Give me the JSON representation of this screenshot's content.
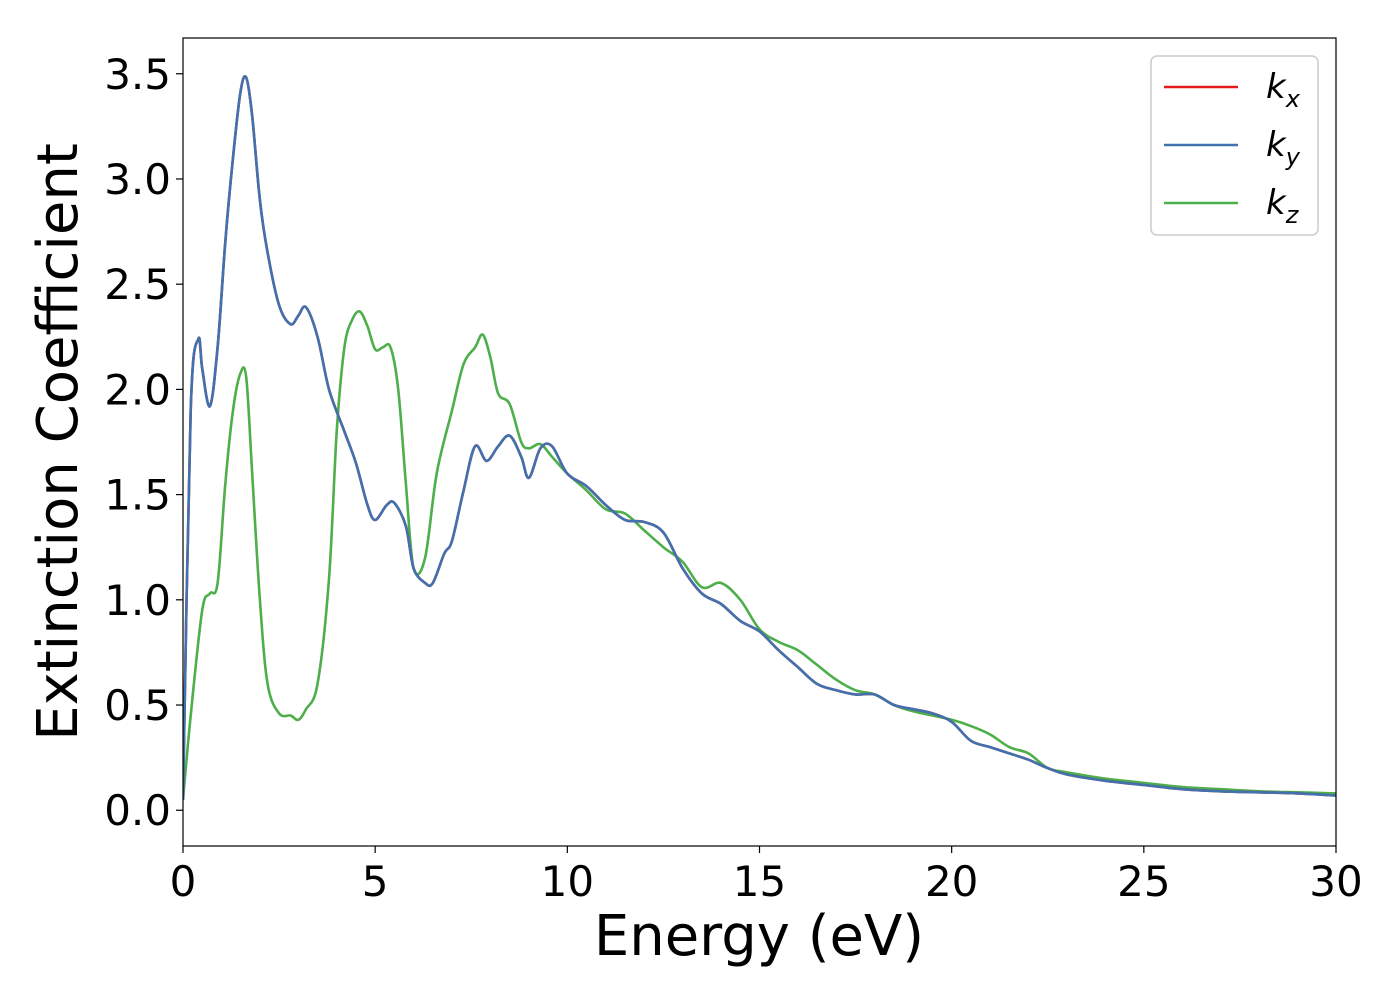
{
  "chart_data": {
    "type": "line",
    "xlabel": "Energy (eV)",
    "ylabel": "Extinction Coefficient",
    "xlim": [
      0,
      30
    ],
    "ylim": [
      -0.17,
      3.67
    ],
    "xticks": [
      0,
      5,
      10,
      15,
      20,
      25,
      30
    ],
    "xtick_labels": [
      "0",
      "5",
      "10",
      "15",
      "20",
      "25",
      "30"
    ],
    "yticks": [
      0.0,
      0.5,
      1.0,
      1.5,
      2.0,
      2.5,
      3.0,
      3.5
    ],
    "ytick_labels": [
      "0.0",
      "0.5",
      "1.0",
      "1.5",
      "2.0",
      "2.5",
      "3.0",
      "3.5"
    ],
    "grid": false,
    "legend_position": "top-right",
    "series": [
      {
        "name": "k",
        "sub": "x",
        "color": "#e41a1c",
        "x": [
          0,
          0.2,
          0.4,
          0.5,
          0.7,
          0.9,
          1.1,
          1.3,
          1.5,
          1.65,
          1.8,
          2.0,
          2.2,
          2.5,
          2.8,
          3.0,
          3.2,
          3.5,
          3.8,
          4.2,
          4.5,
          4.8,
          5.0,
          5.3,
          5.5,
          5.8,
          6.0,
          6.3,
          6.5,
          6.8,
          7.0,
          7.3,
          7.6,
          7.9,
          8.2,
          8.5,
          8.8,
          9.0,
          9.3,
          9.6,
          10.0,
          10.5,
          11.0,
          11.5,
          12.0,
          12.5,
          13.0,
          13.5,
          14.0,
          14.5,
          15.0,
          15.5,
          16.0,
          16.5,
          17.0,
          17.5,
          18.0,
          18.5,
          19.0,
          19.5,
          20.0,
          20.5,
          21.0,
          21.5,
          22.0,
          22.5,
          23.0,
          24.0,
          25.0,
          26.0,
          27.0,
          28.0,
          29.0,
          30.0
        ],
        "y": [
          0.05,
          1.9,
          2.24,
          2.1,
          1.92,
          2.2,
          2.7,
          3.1,
          3.42,
          3.48,
          3.3,
          2.9,
          2.65,
          2.4,
          2.31,
          2.35,
          2.39,
          2.25,
          2.0,
          1.8,
          1.65,
          1.45,
          1.38,
          1.45,
          1.46,
          1.35,
          1.15,
          1.08,
          1.08,
          1.22,
          1.28,
          1.52,
          1.73,
          1.66,
          1.73,
          1.78,
          1.68,
          1.58,
          1.72,
          1.73,
          1.6,
          1.54,
          1.45,
          1.38,
          1.37,
          1.32,
          1.15,
          1.03,
          0.98,
          0.9,
          0.85,
          0.76,
          0.68,
          0.6,
          0.57,
          0.55,
          0.55,
          0.5,
          0.48,
          0.46,
          0.42,
          0.33,
          0.3,
          0.27,
          0.24,
          0.2,
          0.17,
          0.14,
          0.12,
          0.1,
          0.09,
          0.085,
          0.08,
          0.07
        ]
      },
      {
        "name": "k",
        "sub": "y",
        "color": "#3f72af",
        "x": [
          0,
          0.2,
          0.4,
          0.5,
          0.7,
          0.9,
          1.1,
          1.3,
          1.5,
          1.65,
          1.8,
          2.0,
          2.2,
          2.5,
          2.8,
          3.0,
          3.2,
          3.5,
          3.8,
          4.2,
          4.5,
          4.8,
          5.0,
          5.3,
          5.5,
          5.8,
          6.0,
          6.3,
          6.5,
          6.8,
          7.0,
          7.3,
          7.6,
          7.9,
          8.2,
          8.5,
          8.8,
          9.0,
          9.3,
          9.6,
          10.0,
          10.5,
          11.0,
          11.5,
          12.0,
          12.5,
          13.0,
          13.5,
          14.0,
          14.5,
          15.0,
          15.5,
          16.0,
          16.5,
          17.0,
          17.5,
          18.0,
          18.5,
          19.0,
          19.5,
          20.0,
          20.5,
          21.0,
          21.5,
          22.0,
          22.5,
          23.0,
          24.0,
          25.0,
          26.0,
          27.0,
          28.0,
          29.0,
          30.0
        ],
        "y": [
          0.05,
          1.9,
          2.24,
          2.1,
          1.92,
          2.2,
          2.7,
          3.1,
          3.42,
          3.48,
          3.3,
          2.9,
          2.65,
          2.4,
          2.31,
          2.35,
          2.39,
          2.25,
          2.0,
          1.8,
          1.65,
          1.45,
          1.38,
          1.45,
          1.46,
          1.35,
          1.15,
          1.08,
          1.08,
          1.22,
          1.28,
          1.52,
          1.73,
          1.66,
          1.73,
          1.78,
          1.68,
          1.58,
          1.72,
          1.73,
          1.6,
          1.54,
          1.45,
          1.38,
          1.37,
          1.32,
          1.15,
          1.03,
          0.98,
          0.9,
          0.85,
          0.76,
          0.68,
          0.6,
          0.57,
          0.55,
          0.55,
          0.5,
          0.48,
          0.46,
          0.42,
          0.33,
          0.3,
          0.27,
          0.24,
          0.2,
          0.17,
          0.14,
          0.12,
          0.1,
          0.09,
          0.085,
          0.08,
          0.07
        ]
      },
      {
        "name": "k",
        "sub": "z",
        "color": "#4daf4a",
        "x": [
          0,
          0.2,
          0.5,
          0.7,
          0.9,
          1.1,
          1.3,
          1.5,
          1.65,
          1.8,
          2.0,
          2.2,
          2.5,
          2.8,
          3.0,
          3.2,
          3.5,
          3.8,
          4.0,
          4.2,
          4.4,
          4.6,
          4.8,
          5.0,
          5.2,
          5.4,
          5.6,
          5.8,
          6.0,
          6.3,
          6.6,
          7.0,
          7.3,
          7.6,
          7.8,
          8.0,
          8.2,
          8.5,
          8.8,
          9.0,
          9.3,
          9.6,
          10.0,
          10.5,
          11.0,
          11.5,
          12.0,
          12.5,
          13.0,
          13.5,
          14.0,
          14.5,
          15.0,
          15.5,
          16.0,
          16.5,
          17.0,
          17.5,
          18.0,
          18.5,
          19.0,
          19.5,
          20.0,
          20.5,
          21.0,
          21.5,
          22.0,
          22.5,
          23.0,
          24.0,
          25.0,
          26.0,
          27.0,
          28.0,
          29.0,
          30.0
        ],
        "y": [
          0.05,
          0.45,
          0.95,
          1.03,
          1.08,
          1.55,
          1.9,
          2.08,
          2.05,
          1.6,
          1.0,
          0.6,
          0.46,
          0.45,
          0.43,
          0.48,
          0.6,
          1.1,
          1.8,
          2.2,
          2.33,
          2.37,
          2.3,
          2.19,
          2.2,
          2.2,
          2.0,
          1.55,
          1.15,
          1.2,
          1.6,
          1.9,
          2.12,
          2.2,
          2.26,
          2.15,
          1.98,
          1.93,
          1.75,
          1.72,
          1.74,
          1.68,
          1.6,
          1.52,
          1.43,
          1.41,
          1.33,
          1.25,
          1.18,
          1.06,
          1.08,
          1.0,
          0.86,
          0.8,
          0.76,
          0.69,
          0.62,
          0.57,
          0.55,
          0.5,
          0.47,
          0.45,
          0.43,
          0.4,
          0.36,
          0.3,
          0.27,
          0.2,
          0.18,
          0.15,
          0.13,
          0.11,
          0.1,
          0.09,
          0.085,
          0.08
        ]
      }
    ]
  },
  "colors": {
    "frame": "#000000",
    "background": "#ffffff"
  }
}
